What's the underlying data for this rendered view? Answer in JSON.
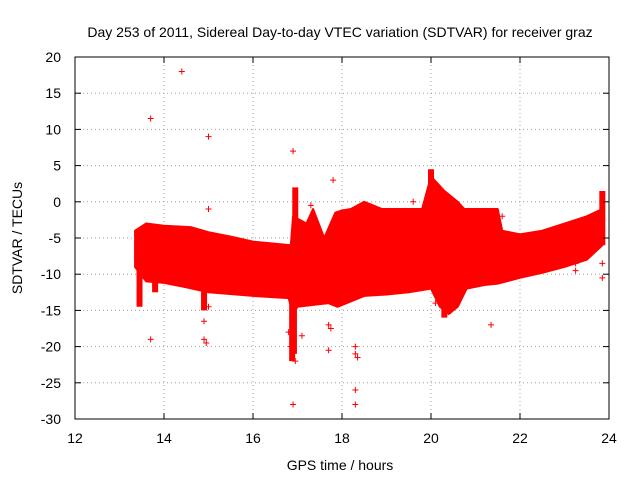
{
  "chart_data": {
    "type": "scatter",
    "title": "Day 253 of 2011, Sidereal Day-to-day VTEC variation (SDTVAR) for receiver graz",
    "xlabel": "GPS time / hours",
    "ylabel": "SDTVAR / TECUs",
    "xlim": [
      12,
      24
    ],
    "ylim": [
      -30,
      20
    ],
    "xticks": [
      12,
      14,
      16,
      18,
      20,
      22,
      24
    ],
    "yticks": [
      20,
      15,
      10,
      5,
      0,
      -5,
      -10,
      -15,
      -20,
      -25,
      -30
    ],
    "grid": true,
    "marker": "+",
    "color": "#ff0000",
    "band_upper": [
      [
        13.35,
        -4
      ],
      [
        13.6,
        -3
      ],
      [
        14,
        -3.3
      ],
      [
        14.6,
        -3.5
      ],
      [
        15.0,
        -4.2
      ],
      [
        15.5,
        -4.8
      ],
      [
        16.0,
        -5.5
      ],
      [
        16.5,
        -5.8
      ],
      [
        16.85,
        -6
      ],
      [
        16.9,
        -2
      ],
      [
        17.2,
        -3
      ],
      [
        17.35,
        -1
      ],
      [
        17.6,
        -5
      ],
      [
        17.85,
        -1.5
      ],
      [
        18.0,
        -1.2
      ],
      [
        18.2,
        -1
      ],
      [
        18.5,
        0
      ],
      [
        18.9,
        -1
      ],
      [
        19.3,
        -1
      ],
      [
        19.8,
        -1
      ],
      [
        20.0,
        3.5
      ],
      [
        20.3,
        1.5
      ],
      [
        20.6,
        0
      ],
      [
        20.75,
        -1
      ],
      [
        21.5,
        -1
      ],
      [
        21.6,
        -4
      ],
      [
        22.0,
        -4.5
      ],
      [
        22.5,
        -4
      ],
      [
        23.0,
        -3
      ],
      [
        23.5,
        -2
      ],
      [
        23.85,
        -1
      ]
    ],
    "band_lower": [
      [
        13.35,
        -9
      ],
      [
        13.6,
        -11
      ],
      [
        14,
        -11.2
      ],
      [
        14.5,
        -11.8
      ],
      [
        15.0,
        -12.5
      ],
      [
        16.0,
        -13
      ],
      [
        16.8,
        -13.3
      ],
      [
        16.9,
        -15.5
      ],
      [
        17.0,
        -14.5
      ],
      [
        17.4,
        -14.2
      ],
      [
        17.7,
        -14
      ],
      [
        17.9,
        -14.5
      ],
      [
        18.1,
        -14
      ],
      [
        18.5,
        -13
      ],
      [
        19.0,
        -12.8
      ],
      [
        19.5,
        -12.5
      ],
      [
        20.0,
        -12
      ],
      [
        20.2,
        -14.5
      ],
      [
        20.4,
        -15.5
      ],
      [
        20.6,
        -14.5
      ],
      [
        20.8,
        -12
      ],
      [
        21.2,
        -11.5
      ],
      [
        21.5,
        -11.3
      ],
      [
        22.0,
        -10.5
      ],
      [
        22.5,
        -9.8
      ],
      [
        23.0,
        -9
      ],
      [
        23.5,
        -8
      ],
      [
        23.85,
        -6
      ]
    ],
    "spikes": [
      {
        "x": 13.45,
        "lo": -14.5,
        "hi": -9
      },
      {
        "x": 13.8,
        "lo": -12.5,
        "hi": -8.5
      },
      {
        "x": 14.9,
        "lo": -15,
        "hi": -10
      },
      {
        "x": 16.88,
        "lo": -22,
        "hi": -13
      },
      {
        "x": 16.92,
        "lo": -21,
        "hi": -13
      },
      {
        "x": 16.95,
        "lo": -14,
        "hi": 2
      },
      {
        "x": 20.0,
        "lo": -5,
        "hi": 4.5
      },
      {
        "x": 20.3,
        "lo": -16,
        "hi": -10
      },
      {
        "x": 23.85,
        "lo": -6,
        "hi": 1.5
      }
    ],
    "outliers": [
      {
        "x": 13.7,
        "y": 11.5
      },
      {
        "x": 14.4,
        "y": 18
      },
      {
        "x": 15.0,
        "y": 9
      },
      {
        "x": 15.0,
        "y": -1
      },
      {
        "x": 16.9,
        "y": 7
      },
      {
        "x": 17.8,
        "y": 3
      },
      {
        "x": 13.7,
        "y": -19
      },
      {
        "x": 14.9,
        "y": -16.5
      },
      {
        "x": 14.9,
        "y": -19
      },
      {
        "x": 14.95,
        "y": -19.5
      },
      {
        "x": 15.0,
        "y": -14.5
      },
      {
        "x": 16.8,
        "y": -18
      },
      {
        "x": 16.85,
        "y": -20
      },
      {
        "x": 16.95,
        "y": -22
      },
      {
        "x": 17.1,
        "y": -18.5
      },
      {
        "x": 16.9,
        "y": -28
      },
      {
        "x": 17.7,
        "y": -17
      },
      {
        "x": 17.7,
        "y": -20.5
      },
      {
        "x": 17.75,
        "y": -17.5
      },
      {
        "x": 18.3,
        "y": -20
      },
      {
        "x": 18.3,
        "y": -21
      },
      {
        "x": 18.35,
        "y": -21.5
      },
      {
        "x": 18.3,
        "y": -26
      },
      {
        "x": 18.3,
        "y": -28
      },
      {
        "x": 19.8,
        "y": -10.5
      },
      {
        "x": 20.1,
        "y": -14
      },
      {
        "x": 21.35,
        "y": -17
      },
      {
        "x": 23.25,
        "y": -9.5
      },
      {
        "x": 23.25,
        "y": -8.5
      },
      {
        "x": 23.3,
        "y": -8
      },
      {
        "x": 23.85,
        "y": -8.5
      },
      {
        "x": 23.85,
        "y": -10.5
      },
      {
        "x": 19.6,
        "y": 0
      },
      {
        "x": 18.6,
        "y": -1
      },
      {
        "x": 17.3,
        "y": -0.5
      },
      {
        "x": 21.6,
        "y": -2
      }
    ]
  }
}
